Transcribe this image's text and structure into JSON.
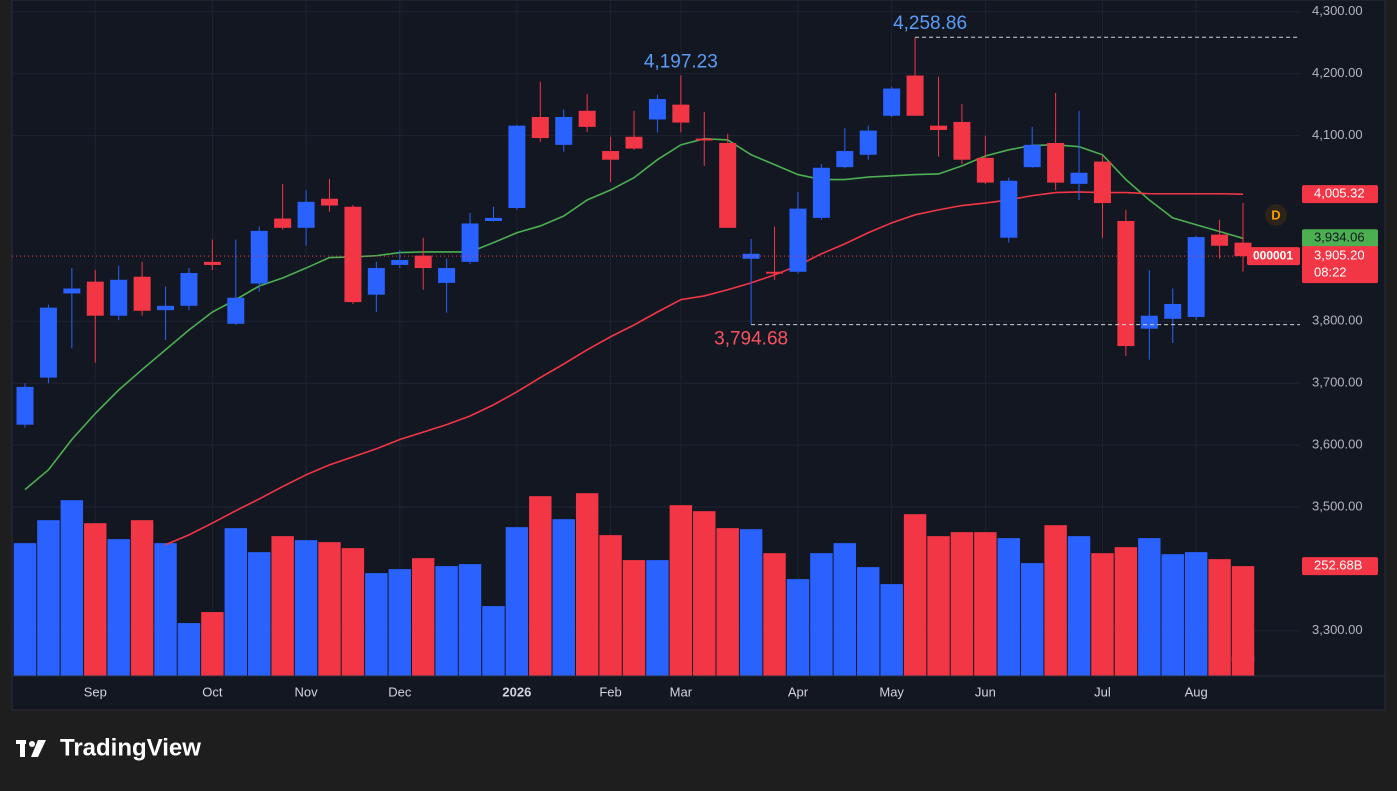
{
  "chart_data": {
    "type": "candlestick",
    "categories": [
      null,
      null,
      null,
      "Sep",
      null,
      null,
      null,
      null,
      "Oct",
      null,
      null,
      null,
      "Nov",
      null,
      null,
      null,
      "Dec",
      null,
      null,
      null,
      null,
      "2026",
      null,
      null,
      null,
      "Feb",
      null,
      null,
      "Mar",
      null,
      null,
      null,
      null,
      "Apr",
      null,
      null,
      null,
      "May",
      null,
      null,
      null,
      "Jun",
      null,
      null,
      null,
      null,
      "Jul",
      null,
      null,
      null,
      "Aug",
      null,
      null
    ],
    "open": [
      3633,
      3709,
      3845,
      3864,
      3809,
      3872,
      3818,
      3825,
      3896,
      3796,
      3861,
      3966,
      3951,
      3998,
      3985,
      3843,
      3891,
      3906,
      3862,
      3896,
      3962,
      3983,
      4130,
      4085,
      4140,
      4075,
      4098,
      4126,
      4150,
      4095,
      4088,
      3901,
      3880,
      3880,
      3967,
      4049,
      4069,
      4132,
      4197,
      4116,
      4122,
      4064,
      3935,
      4049,
      4088,
      4022,
      4058,
      3962,
      3788,
      3804,
      3807,
      3940,
      3927
    ],
    "high": [
      3700,
      3827,
      3886,
      3883,
      3890,
      3896,
      3856,
      3886,
      3932,
      3932,
      3953,
      4022,
      4012,
      4030,
      3988,
      3896,
      3915,
      3935,
      3901,
      3975,
      3985,
      4117,
      4187,
      4142,
      4167,
      4098,
      4140,
      4166,
      4197.23,
      4138,
      4103,
      3933,
      3953,
      4009,
      4054,
      4112,
      4116,
      4179,
      4258.86,
      4195,
      4151,
      4100,
      4032,
      4114,
      4169,
      4140,
      4067,
      3980,
      3883,
      3853,
      3938,
      3964,
      3991
    ],
    "low": [
      3628,
      3700,
      3756,
      3733,
      3802,
      3809,
      3770,
      3818,
      3883,
      3794,
      3848,
      3948,
      3922,
      3977,
      3828,
      3815,
      3886,
      3851,
      3814,
      3893,
      3961,
      3980,
      4090,
      4074,
      4106,
      4025,
      4077,
      4105,
      4105,
      4051,
      3951,
      3794.68,
      3867,
      3877,
      3964,
      4047,
      4061,
      4130,
      4132,
      4066,
      4054,
      4022,
      3927,
      4048,
      4012,
      3996,
      3935,
      3744,
      3738,
      3765,
      3802,
      3901,
      3880
    ],
    "close": [
      3694,
      3822,
      3853,
      3809,
      3867,
      3817,
      3825,
      3878,
      3891,
      3838,
      3946,
      3951,
      3993,
      3987,
      3831,
      3886,
      3899,
      3886,
      3886,
      3958,
      3967,
      4116,
      4096,
      4130,
      4114,
      4061,
      4079,
      4159,
      4121,
      4092,
      3951,
      3909,
      3877,
      3982,
      4048,
      4075,
      4108,
      4176,
      4132,
      4109,
      4061,
      4024,
      4027,
      4085,
      4024,
      4040,
      3991,
      3760,
      3809,
      3828,
      3936,
      3922,
      3905.2
    ],
    "close_label": "3,905.20",
    "countdown": "08:22",
    "symbol_tag": "000001",
    "up_color": "#2962ff",
    "down_color": "#f23645",
    "volume": [
      305.5,
      358.3,
      404.3,
      351.4,
      314.7,
      358.3,
      305.5,
      121.7,
      147.0,
      340.0,
      284.8,
      321.6,
      312.4,
      307.8,
      294.0,
      236.6,
      245.8,
      271.0,
      252.7,
      257.3,
      160.8,
      342.3,
      413.5,
      360.6,
      420.4,
      323.9,
      266.5,
      266.5,
      392.8,
      379.0,
      340.0,
      337.7,
      282.5,
      222.8,
      282.5,
      305.5,
      250.4,
      211.3,
      372.1,
      321.6,
      330.8,
      330.8,
      317.0,
      259.6,
      346.8,
      321.6,
      282.5,
      296.3,
      317.0,
      280.2,
      284.8,
      268.7,
      252.68
    ],
    "volume_label": "252.68B",
    "volume_lim": [
      0,
      430
    ],
    "series": [
      {
        "color": "#4caf50",
        "values": [
          3528,
          3560,
          3609,
          3651,
          3689,
          3722,
          3754,
          3786,
          3815,
          3835,
          3857,
          3870,
          3886,
          3903,
          3904,
          3906,
          3911,
          3912,
          3912,
          3912,
          3927,
          3943,
          3954,
          3970,
          3996,
          4012,
          4032,
          4061,
          4085,
          4095,
          4093,
          4069,
          4053,
          4037,
          4029,
          4029,
          4033,
          4035,
          4037,
          4038,
          4051,
          4067,
          4077,
          4084,
          4085,
          4082,
          4069,
          4029,
          3996,
          3967,
          3956,
          3945,
          3934.06
        ],
        "last_label": "3,934.06"
      },
      {
        "color": "#f23645",
        "values": [
          null,
          null,
          null,
          null,
          null,
          null,
          3439,
          3455,
          3474,
          3494,
          3513,
          3533,
          3552,
          3568,
          3581,
          3594,
          3609,
          3621,
          3633,
          3647,
          3665,
          3686,
          3709,
          3731,
          3754,
          3775,
          3794,
          3815,
          3835,
          3841,
          3851,
          3862,
          3875,
          3890,
          3909,
          3925,
          3943,
          3959,
          3972,
          3980,
          3987,
          3991,
          3996,
          4003,
          4008,
          4009,
          4008,
          4008,
          4006,
          4006,
          4006,
          4006,
          4005.32
        ],
        "last_label": "4,005.32"
      }
    ],
    "annotations": [
      {
        "label": "4,258.86",
        "value": 4258.86,
        "color": "#5b9cf6"
      },
      {
        "label": "4,197.23",
        "value": 4197.23,
        "color": "#5b9cf6"
      },
      {
        "label": "3,794.68",
        "value": 3794.68,
        "color": "#f7525f"
      }
    ],
    "ylim": [
      3227,
      4319
    ],
    "yticks": [
      {
        "value": 4300,
        "label": "4,300.00"
      },
      {
        "value": 4200,
        "label": "4,200.00"
      },
      {
        "value": 4100,
        "label": "4,100.00"
      },
      {
        "value": 3800,
        "label": "3,800.00"
      },
      {
        "value": 3700,
        "label": "3,700.00"
      },
      {
        "value": 3600,
        "label": "3,600.00"
      },
      {
        "value": 3500,
        "label": "3,500.00"
      },
      {
        "value": 3300,
        "label": "3,300.00"
      }
    ],
    "grid": true,
    "interval": "D"
  },
  "brand": "TradingView"
}
